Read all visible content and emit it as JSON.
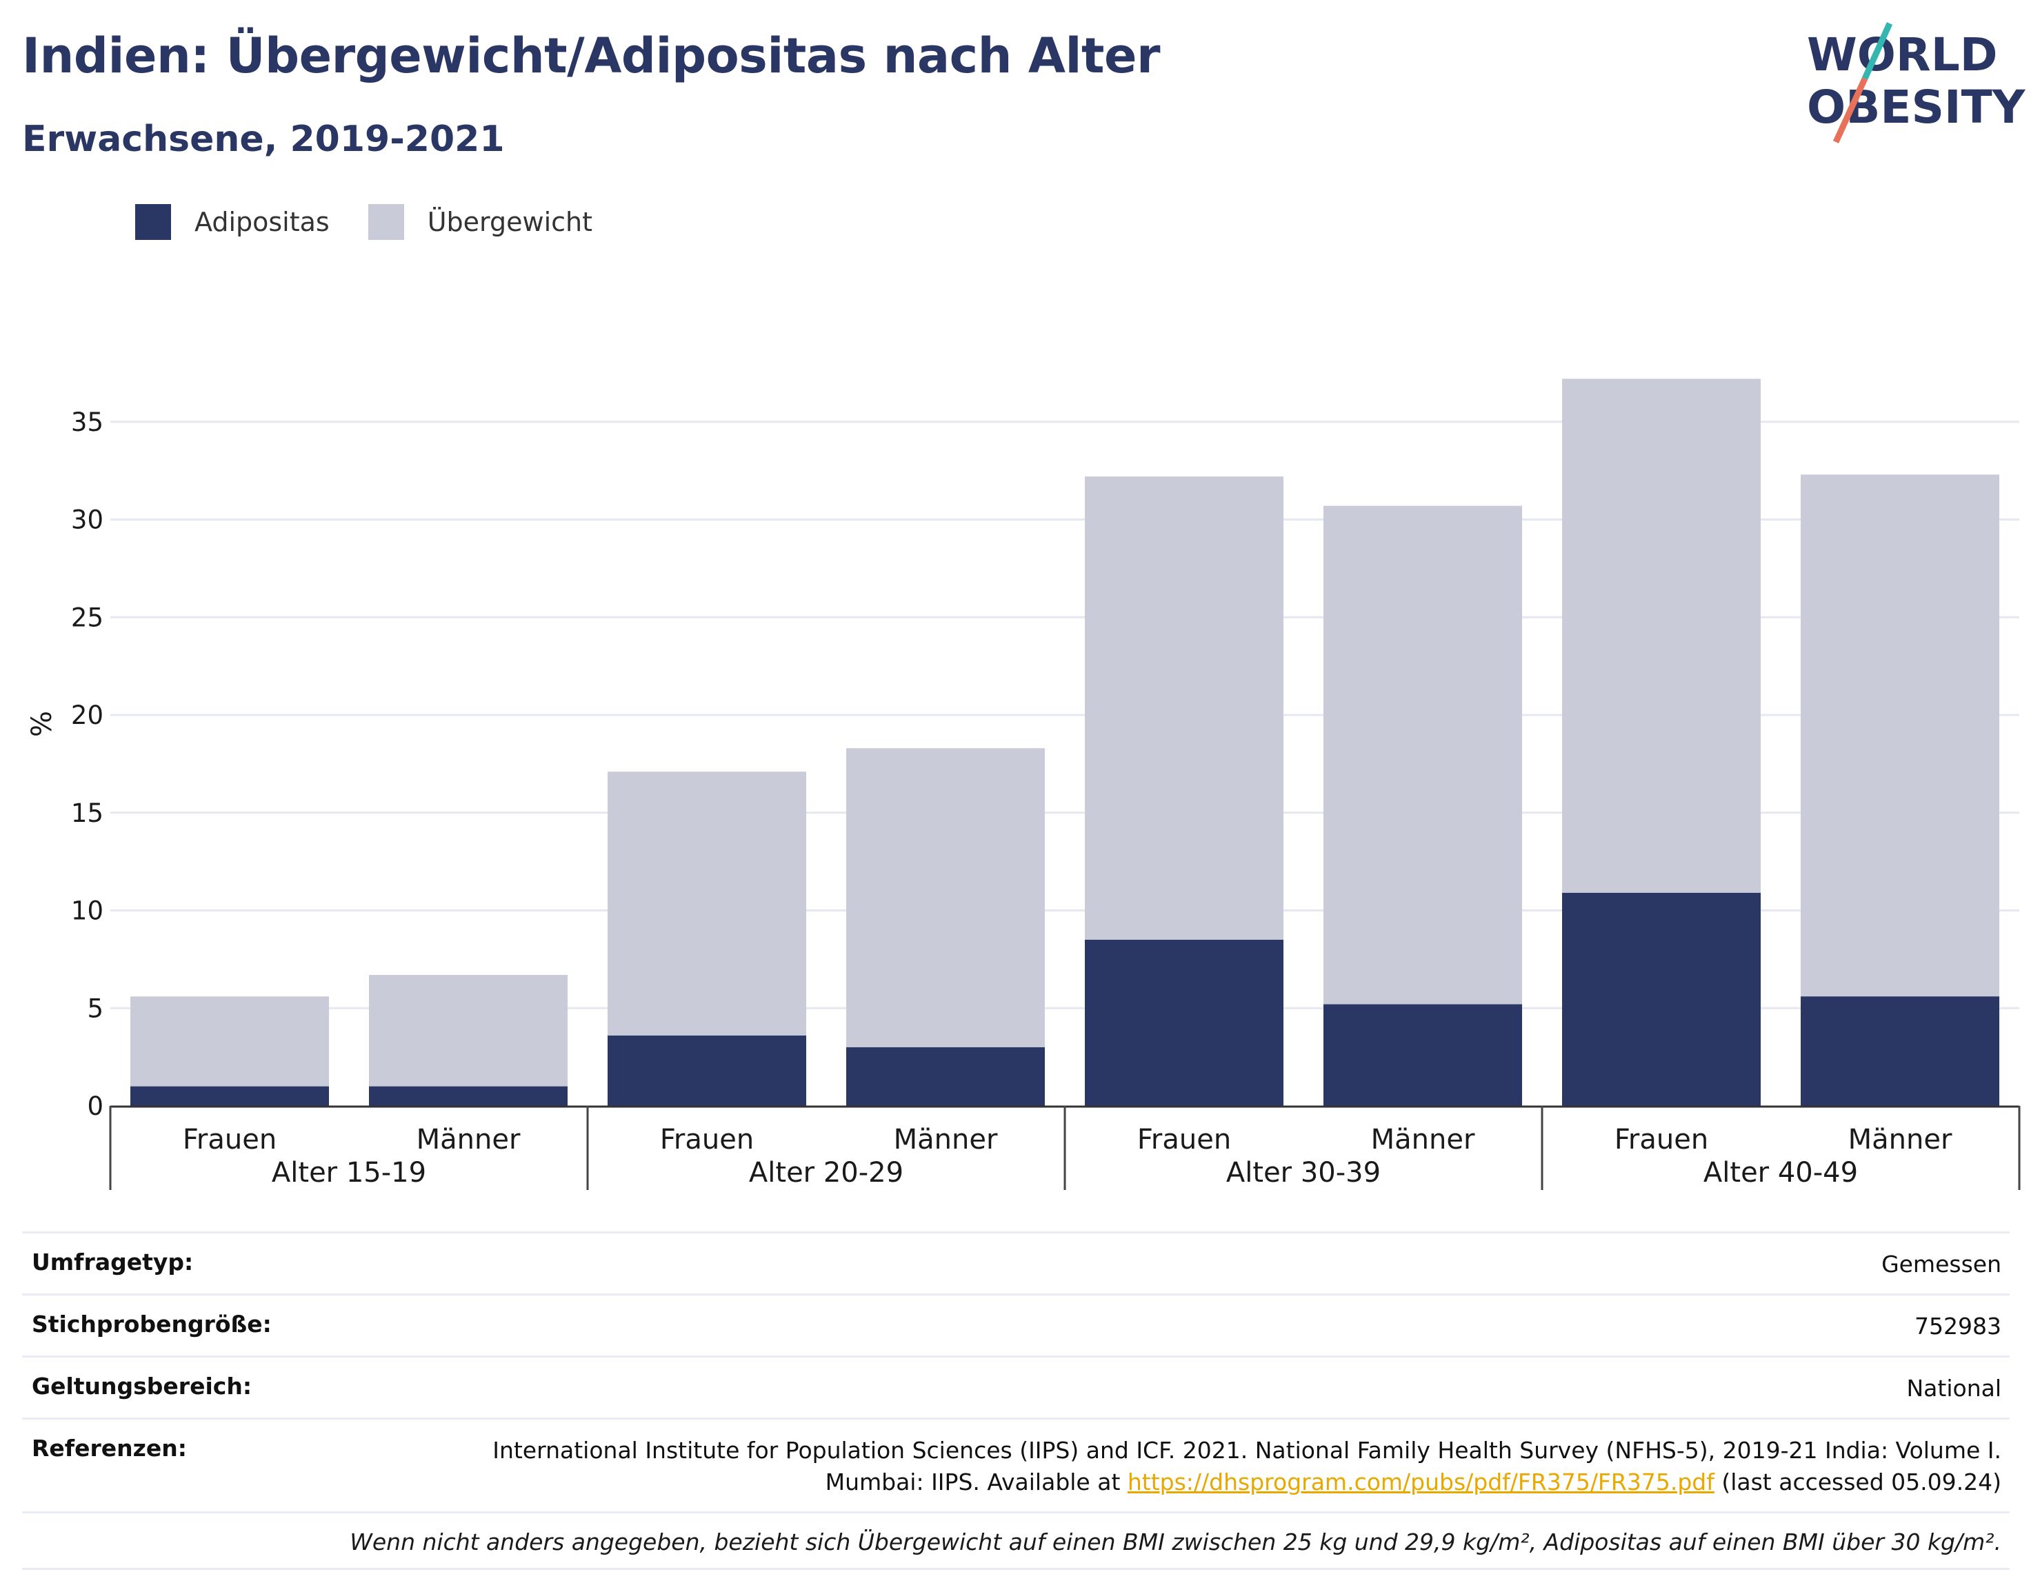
{
  "header": {
    "title": "Indien: Übergewicht/Adipositas nach Alter",
    "subtitle": "Erwachsene, 2019-2021"
  },
  "logo": {
    "line1": "WORLD",
    "line2": "OBESITY"
  },
  "colors": {
    "obesity": "#2a3663",
    "overweight": "#c9ccd8",
    "text": "#1a1a1a",
    "grid": "#e6e8ef"
  },
  "legend": [
    {
      "label": "Adipositas"
    },
    {
      "label": "Übergewicht"
    }
  ],
  "chart_data": {
    "type": "bar",
    "stacked": true,
    "ylabel": "%",
    "ylim": [
      0,
      38
    ],
    "yticks": [
      0,
      5,
      10,
      15,
      20,
      25,
      30,
      35
    ],
    "grid": true,
    "legend_position": "top-left",
    "groups": [
      "Alter 15-19",
      "Alter 20-29",
      "Alter 30-39",
      "Alter 40-49"
    ],
    "categories": [
      "Frauen",
      "Männer",
      "Frauen",
      "Männer",
      "Frauen",
      "Männer",
      "Frauen",
      "Männer"
    ],
    "series": [
      {
        "name": "Adipositas",
        "values": [
          1.0,
          1.0,
          3.6,
          3.0,
          8.5,
          5.2,
          10.9,
          5.6
        ]
      },
      {
        "name": "Übergewicht",
        "values": [
          4.6,
          5.7,
          13.5,
          15.3,
          23.7,
          25.5,
          26.3,
          26.7
        ]
      }
    ]
  },
  "meta": {
    "rows": [
      {
        "key": "Umfragetyp:",
        "value": "Gemessen"
      },
      {
        "key": "Stichprobengröße:",
        "value": "752983"
      },
      {
        "key": "Geltungsbereich:",
        "value": "National"
      }
    ],
    "references": {
      "key": "Referenzen:",
      "line1": "International Institute for Population Sciences (IIPS) and ICF. 2021. National Family Health Survey (NFHS-5), 2019-21 India: Volume I.",
      "line2_prefix": "Mumbai: IIPS. Available at ",
      "link": "https://dhsprogram.com/pubs/pdf/FR375/FR375.pdf",
      "line2_suffix": " (last accessed 05.09.24)"
    },
    "note": "Wenn nicht anders angegeben, bezieht sich Übergewicht auf einen BMI zwischen 25 kg und 29,9 kg/m², Adipositas auf einen BMI über 30 kg/m²."
  }
}
